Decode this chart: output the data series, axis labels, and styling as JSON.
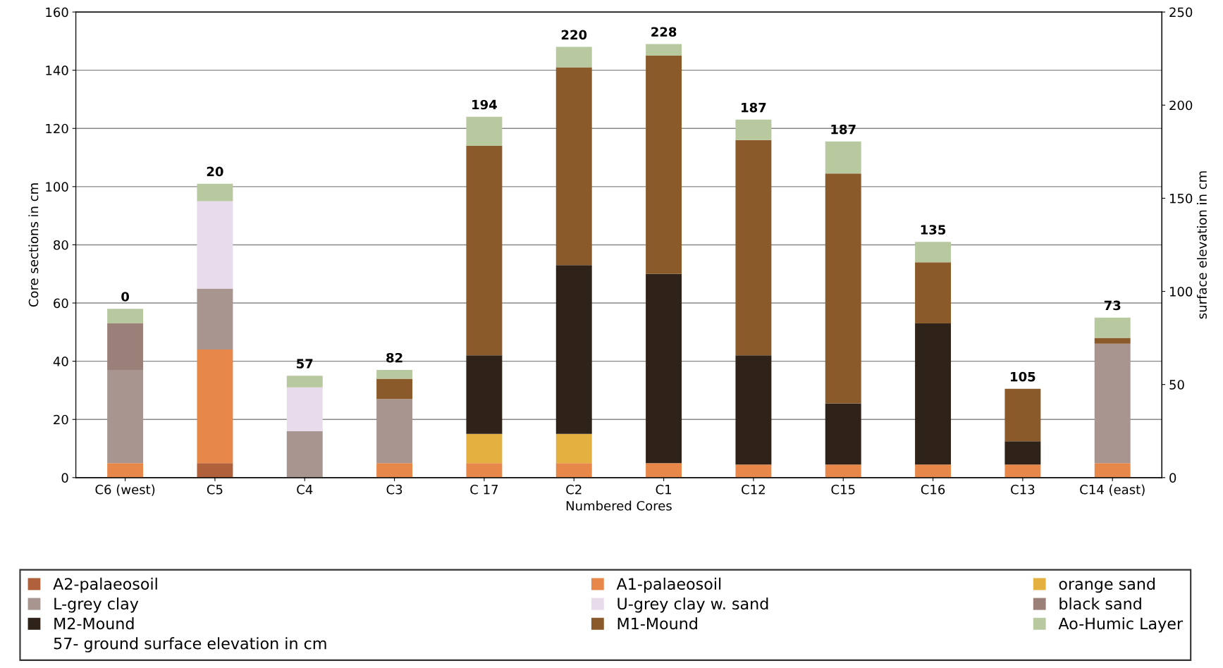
{
  "chart_data": {
    "type": "bar",
    "stacked": true,
    "xlabel": "Numbered Cores",
    "ylabel": "Core sections in cm",
    "y2label": "surface elevation in cm",
    "categories": [
      "C6 (west)",
      "C5",
      "C4",
      "C3",
      "C 17",
      "C2",
      "C1",
      "C12",
      "C15",
      "C16",
      "C13",
      "C14 (east)"
    ],
    "ylim": [
      0,
      160
    ],
    "yticks": [
      0,
      20,
      40,
      60,
      80,
      100,
      120,
      140,
      160
    ],
    "y2lim": [
      0,
      250
    ],
    "y2ticks": [
      0,
      50,
      100,
      150,
      200,
      250
    ],
    "grid": "y",
    "legend": "bottom",
    "series": [
      {
        "name": "A2-palaeosoil",
        "color": "#b0603a",
        "values": [
          0,
          5,
          0,
          0,
          0,
          0,
          0,
          0,
          0,
          0,
          0,
          0
        ]
      },
      {
        "name": "A1-palaeosoil",
        "color": "#e8874a",
        "values": [
          5,
          39,
          0,
          5,
          5,
          5,
          5,
          4.5,
          4.5,
          4.5,
          4.5,
          5
        ]
      },
      {
        "name": "orange sand",
        "color": "#e4b040",
        "values": [
          0,
          0,
          0,
          0,
          10,
          10,
          0,
          0,
          0,
          0,
          0,
          0
        ]
      },
      {
        "name": "L-grey clay",
        "color": "#a89590",
        "values": [
          32,
          21,
          16,
          22,
          0,
          0,
          0,
          0,
          0,
          0,
          0,
          41
        ]
      },
      {
        "name": "U-grey clay w. sand",
        "color": "#e8dcec",
        "values": [
          0,
          30,
          15,
          0,
          0,
          0,
          0,
          0,
          0,
          0,
          0,
          0
        ]
      },
      {
        "name": "black sand",
        "color": "#9a8078",
        "values": [
          16,
          0,
          0,
          0,
          0,
          0,
          0,
          0,
          0,
          0,
          0,
          0
        ]
      },
      {
        "name": "M2-Mound",
        "color": "#2e2219",
        "values": [
          0,
          0,
          0,
          0,
          27,
          58,
          65,
          37.5,
          21,
          48.5,
          8,
          0
        ]
      },
      {
        "name": "M1-Mound",
        "color": "#8a5a2b",
        "values": [
          0,
          0,
          0,
          7,
          72,
          68,
          75,
          74,
          79,
          21,
          18,
          2
        ]
      },
      {
        "name": "Ao-Humic Layer",
        "color": "#b8c9a0",
        "values": [
          5,
          6,
          4,
          3,
          10,
          7,
          4,
          7,
          11,
          7,
          0,
          7
        ]
      }
    ],
    "annotations": [
      "0",
      "20",
      "57",
      "82",
      "194",
      "220",
      "228",
      "187",
      "187",
      "135",
      "105",
      "73",
      "57- ground surface elevation in cm"
    ]
  }
}
